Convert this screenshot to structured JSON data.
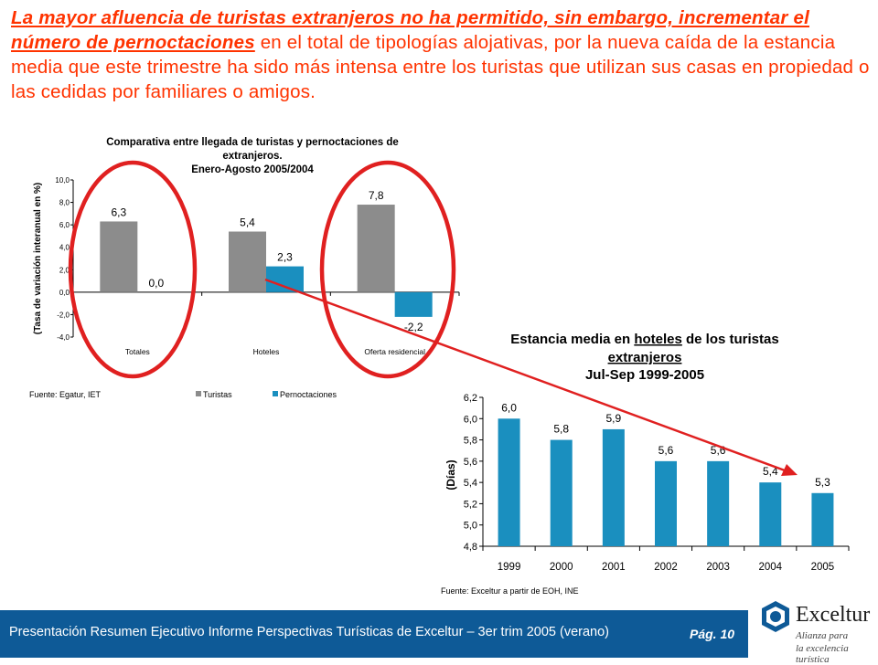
{
  "headline": {
    "emph": "La mayor afluencia de turistas extranjeros no ha permitido, sin embargo, incrementar el número de pernoctaciones",
    "rest": " en el total de tipologías alojativas, por la nueva caída de la estancia media que este trimestre ha sido más intensa entre los turistas que utilizan sus casas en propiedad o las cedidas por familiares o amigos."
  },
  "chart_data": [
    {
      "type": "bar",
      "title_lines": [
        "Comparativa entre llegada de turistas y pernoctaciones de",
        "extranjeros.",
        "Enero-Agosto 2005/2004"
      ],
      "ylabel": "(Tasa de variación interanual en %)",
      "categories": [
        "Totales",
        "Hoteles",
        "Oferta residencial"
      ],
      "series": [
        {
          "name": "Turistas",
          "values": [
            6.3,
            5.4,
            7.8
          ],
          "labels": [
            "6,3",
            "5,4",
            "7,8"
          ],
          "color": "#8c8c8c"
        },
        {
          "name": "Pernoctaciones",
          "values": [
            0.0,
            2.3,
            -2.2
          ],
          "labels": [
            "0,0",
            "2,3",
            "-2,2"
          ],
          "color": "#1a8fbf"
        }
      ],
      "ylim": [
        -4.0,
        10.0
      ],
      "yticks": [
        -4.0,
        -2.0,
        0.0,
        2.0,
        4.0,
        6.0,
        8.0,
        10.0
      ],
      "ytick_labels": [
        "-4,0",
        "-2,0",
        "0,0",
        "2,0",
        "4,0",
        "6,0",
        "8,0",
        "10,0"
      ],
      "source": "Fuente: Egatur, IET",
      "legend_position": "bottom"
    },
    {
      "type": "bar",
      "title_lines": [
        "Estancia media en ",
        "hoteles",
        " de los turistas",
        "extranjeros",
        "Jul-Sep 1999-2005"
      ],
      "ylabel": "(Días)",
      "categories": [
        "1999",
        "2000",
        "2001",
        "2002",
        "2003",
        "2004",
        "2005"
      ],
      "series": [
        {
          "name": "Estancia media",
          "values": [
            6.0,
            5.8,
            5.9,
            5.6,
            5.6,
            5.4,
            5.3
          ],
          "labels": [
            "6,0",
            "5,8",
            "5,9",
            "5,6",
            "5,6",
            "5,4",
            "5,3"
          ],
          "color": "#1a8fbf"
        }
      ],
      "ylim": [
        4.8,
        6.2
      ],
      "yticks": [
        4.8,
        5.0,
        5.2,
        5.4,
        5.6,
        5.8,
        6.0,
        6.2
      ],
      "ytick_labels": [
        "4,8",
        "5,0",
        "5,2",
        "5,4",
        "5,6",
        "5,8",
        "6,0",
        "6,2"
      ],
      "source": "Fuente: Exceltur a partir de EOH, INE",
      "grid": false
    }
  ],
  "footer": {
    "text": "Presentación Resumen Ejecutivo Informe Perspectivas Turísticas de Exceltur – 3er trim 2005 (verano)",
    "page": "Pág. 10"
  },
  "logo": {
    "brand": "Exceltur",
    "tagline1": "Alianza para",
    "tagline2": "la excelencia turística"
  },
  "colors": {
    "accent": "#ff3300",
    "annotation": "#e02020",
    "footer_bg": "#0e5a97"
  }
}
